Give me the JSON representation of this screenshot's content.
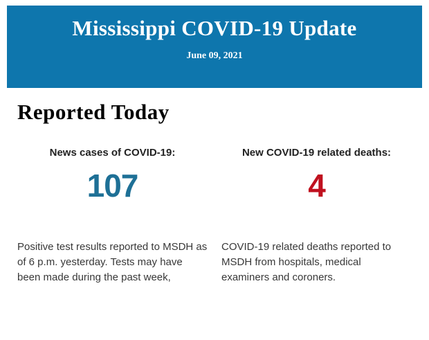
{
  "banner": {
    "title": "Mississippi COVID-19 Update",
    "date": "June 09, 2021",
    "background_color": "#0e76ad",
    "text_color": "#ffffff"
  },
  "main": {
    "heading": "Reported Today",
    "stats": [
      {
        "label": "News cases of COVID-19:",
        "value": "107",
        "value_color": "#1e7096",
        "description": "Positive test results reported to MSDH as of 6 p.m. yesterday. Tests may have been made during the past week,"
      },
      {
        "label": "New COVID-19 related deaths:",
        "value": "4",
        "value_color": "#c0111f",
        "description": "COVID-19 related deaths reported to MSDH from hospitals, medical examiners and coroners."
      }
    ]
  }
}
